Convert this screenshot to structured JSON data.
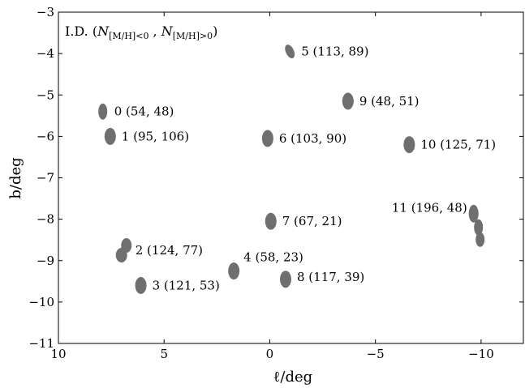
{
  "chart_data": {
    "type": "scatter",
    "title": "",
    "legend_text": {
      "prefix": "I.D. (",
      "n_symbol_1": "N",
      "n_sub_1": "[M/H]<0",
      "separator": " , ",
      "n_symbol_2": "N",
      "n_sub_2": "[M/H]>0",
      "suffix": ")"
    },
    "xlabel": "ℓ/deg",
    "ylabel": "b/deg",
    "xlim": [
      10,
      -12
    ],
    "ylim": [
      -11,
      -3
    ],
    "x_inverted": true,
    "xticks": [
      10,
      5,
      0,
      -5,
      -10
    ],
    "yticks": [
      -11,
      -10,
      -9,
      -8,
      -7,
      -6,
      -5,
      -4,
      -3
    ],
    "xtick_labels": [
      "10",
      "5",
      "0",
      "−5",
      "−10"
    ],
    "ytick_labels": [
      "−11",
      "−10",
      "−9",
      "−8",
      "−7",
      "−6",
      "−5",
      "−4",
      "−3"
    ],
    "grid": false,
    "marker_color": "#6f6f6f",
    "fields": [
      {
        "id": "0",
        "label": "0 (54, 48)",
        "x": 7.9,
        "y": -5.4
      },
      {
        "id": "1",
        "label": "1 (95, 106)",
        "x": 7.55,
        "y": -6.0
      },
      {
        "id": "2",
        "label": "2 (124, 77)",
        "x": 6.9,
        "y": -8.75
      },
      {
        "id": "3",
        "label": "3 (121, 53)",
        "x": 6.1,
        "y": -9.6
      },
      {
        "id": "4",
        "label": "4 (58, 23)",
        "x": 1.7,
        "y": -9.25
      },
      {
        "id": "5",
        "label": "5 (113, 89)",
        "x": -0.95,
        "y": -3.95
      },
      {
        "id": "6",
        "label": "6 (103, 90)",
        "x": 0.1,
        "y": -6.05
      },
      {
        "id": "7",
        "label": "7 (67, 21)",
        "x": -0.05,
        "y": -8.05
      },
      {
        "id": "8",
        "label": "8 (117, 39)",
        "x": -0.75,
        "y": -9.45
      },
      {
        "id": "9",
        "label": "9 (48, 51)",
        "x": -3.7,
        "y": -5.15
      },
      {
        "id": "10",
        "label": "10 (125, 71)",
        "x": -6.6,
        "y": -6.2
      },
      {
        "id": "11",
        "label": "11 (196, 48)",
        "x": -9.8,
        "y": -8.1
      }
    ]
  }
}
